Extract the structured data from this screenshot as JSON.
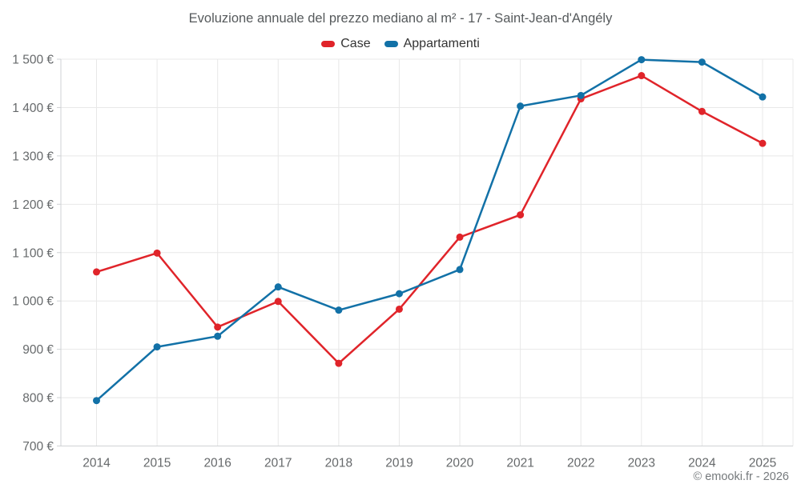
{
  "page": {
    "title": "Evoluzione annuale del prezzo mediano al m² - 17 - Saint-Jean-d'Angély",
    "copyright": "© emooki.fr - 2026"
  },
  "legend": {
    "items": [
      {
        "label": "Case",
        "color": "#e0242a",
        "marker": "rounded-rect-icon"
      },
      {
        "label": "Appartamenti",
        "color": "#1271a7",
        "marker": "rounded-rect-icon"
      }
    ]
  },
  "colors": {
    "case_red": "#e0242a",
    "appartamenti_blue": "#1271a7",
    "gridline": "#e8e8e8",
    "axis_line": "#cfd2d4",
    "tick_text": "#66696b",
    "title_text": "#565a5c"
  },
  "chart_data": {
    "type": "line",
    "title": "Evoluzione annuale del prezzo mediano al m² - 17 - Saint-Jean-d'Angély",
    "categories": [
      "2014",
      "2015",
      "2016",
      "2017",
      "2018",
      "2019",
      "2020",
      "2021",
      "2022",
      "2023",
      "2024",
      "2025"
    ],
    "series": [
      {
        "name": "Case",
        "color": "#e0242a",
        "values": [
          1060,
          1099,
          946,
          999,
          871,
          983,
          1132,
          1178,
          1418,
          1466,
          1392,
          1326
        ]
      },
      {
        "name": "Appartamenti",
        "color": "#1271a7",
        "values": [
          794,
          905,
          927,
          1029,
          981,
          1015,
          1065,
          1403,
          1425,
          1499,
          1494,
          1422
        ]
      }
    ],
    "xlabel": "",
    "ylabel": "",
    "ylim": [
      700,
      1500
    ],
    "ytick_step": 100,
    "ytick_labels": [
      "700 €",
      "800 €",
      "900 €",
      "1 000 €",
      "1 100 €",
      "1 200 €",
      "1 300 €",
      "1 400 €",
      "1 500 €"
    ],
    "grid": true,
    "legend_position": "top",
    "marker": "circle",
    "grid_color": "#e8e8e8",
    "axis_color": "#cfd2d4"
  }
}
